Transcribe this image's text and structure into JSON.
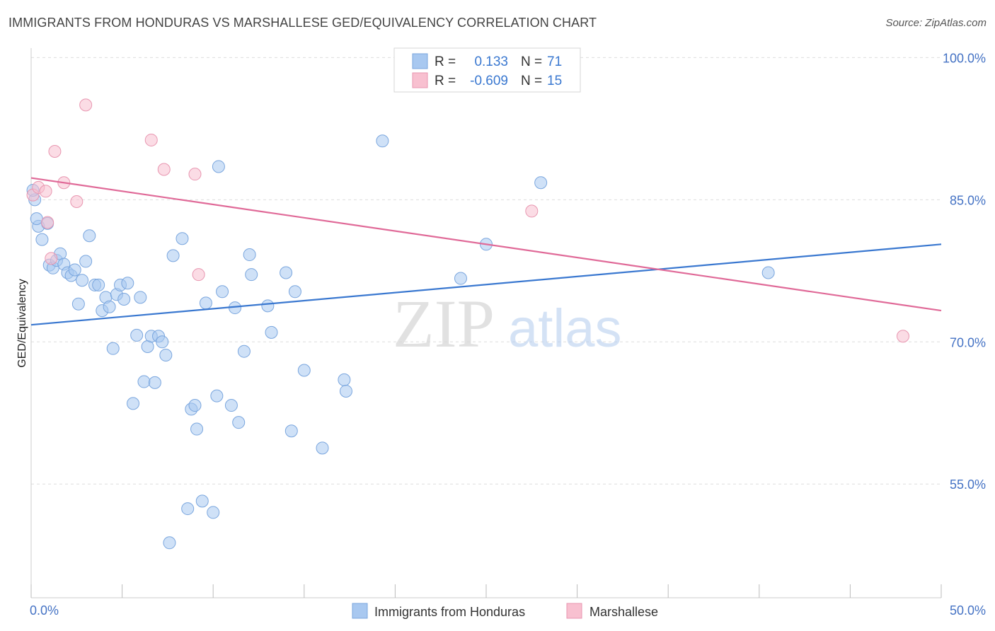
{
  "chart_data": {
    "type": "scatter",
    "title": "IMMIGRANTS FROM HONDURAS VS MARSHALLESE GED/EQUIVALENCY CORRELATION CHART",
    "source": "Source: ZipAtlas.com",
    "ylabel": "GED/Equivalency",
    "xlim": [
      0,
      50
    ],
    "ylim": [
      43,
      101
    ],
    "x_tick_labels": [
      "0.0%",
      "50.0%"
    ],
    "y_ticks": [
      {
        "value": 100,
        "label": "100.0%"
      },
      {
        "value": 85,
        "label": "85.0%"
      },
      {
        "value": 70,
        "label": "70.0%"
      },
      {
        "value": 55,
        "label": "55.0%"
      }
    ],
    "grid": "horizontal dashed",
    "watermark": {
      "zip": "ZIP",
      "atlas": "atlas"
    },
    "legend_stats": [
      {
        "r_label": "R =",
        "r_value": "0.133",
        "n_label": "N =",
        "n_value": "71"
      },
      {
        "r_label": "R =",
        "r_value": "-0.609",
        "n_label": "N =",
        "n_value": "15"
      }
    ],
    "series": [
      {
        "name": "Immigrants from Honduras",
        "color": "#a8c8f0",
        "stroke": "#7aa6de",
        "trend_color": "#3a78d0",
        "trend": [
          [
            0,
            71.8
          ],
          [
            50,
            80.3
          ]
        ],
        "points": [
          [
            0.4,
            82.2
          ],
          [
            0.6,
            80.8
          ],
          [
            0.9,
            82.5
          ],
          [
            1.0,
            78.1
          ],
          [
            1.2,
            77.8
          ],
          [
            1.4,
            78.6
          ],
          [
            1.6,
            79.3
          ],
          [
            1.8,
            78.2
          ],
          [
            2.0,
            77.3
          ],
          [
            2.2,
            77.0
          ],
          [
            2.4,
            77.6
          ],
          [
            2.6,
            74.0
          ],
          [
            2.8,
            76.5
          ],
          [
            3.0,
            78.5
          ],
          [
            3.2,
            81.2
          ],
          [
            3.5,
            76.0
          ],
          [
            3.7,
            76.0
          ],
          [
            3.9,
            73.3
          ],
          [
            4.1,
            74.7
          ],
          [
            4.3,
            73.7
          ],
          [
            4.5,
            69.3
          ],
          [
            4.7,
            75.0
          ],
          [
            4.9,
            76.0
          ],
          [
            5.1,
            74.5
          ],
          [
            5.3,
            76.2
          ],
          [
            5.6,
            63.5
          ],
          [
            5.8,
            70.7
          ],
          [
            6.0,
            74.7
          ],
          [
            6.2,
            65.8
          ],
          [
            6.4,
            69.5
          ],
          [
            6.6,
            70.6
          ],
          [
            6.8,
            65.7
          ],
          [
            7.0,
            70.6
          ],
          [
            7.2,
            70.0
          ],
          [
            7.4,
            68.6
          ],
          [
            7.6,
            48.8
          ],
          [
            7.8,
            79.1
          ],
          [
            8.3,
            80.9
          ],
          [
            8.6,
            52.4
          ],
          [
            8.8,
            62.9
          ],
          [
            9.0,
            63.3
          ],
          [
            9.1,
            60.8
          ],
          [
            9.4,
            53.2
          ],
          [
            9.6,
            74.1
          ],
          [
            10.0,
            52.0
          ],
          [
            10.2,
            64.3
          ],
          [
            10.3,
            88.5
          ],
          [
            10.5,
            75.3
          ],
          [
            11.0,
            63.3
          ],
          [
            11.2,
            73.6
          ],
          [
            11.4,
            61.5
          ],
          [
            11.7,
            69.0
          ],
          [
            12.0,
            79.2
          ],
          [
            12.1,
            77.1
          ],
          [
            13.0,
            73.8
          ],
          [
            13.2,
            71.0
          ],
          [
            14.0,
            77.3
          ],
          [
            14.3,
            60.6
          ],
          [
            14.5,
            75.3
          ],
          [
            15.0,
            67.0
          ],
          [
            16.0,
            58.8
          ],
          [
            17.2,
            66.0
          ],
          [
            17.3,
            64.8
          ],
          [
            19.3,
            91.2
          ],
          [
            23.6,
            76.7
          ],
          [
            25.0,
            80.3
          ],
          [
            28.0,
            86.8
          ],
          [
            40.5,
            77.3
          ],
          [
            0.2,
            85.0
          ],
          [
            0.3,
            83.0
          ],
          [
            0.1,
            86.0
          ]
        ]
      },
      {
        "name": "Marshallese",
        "color": "#f8c0d0",
        "stroke": "#e896b0",
        "trend_color": "#e06a98",
        "trend": [
          [
            0,
            87.3
          ],
          [
            50,
            73.3
          ]
        ],
        "points": [
          [
            0.1,
            85.5
          ],
          [
            0.4,
            86.3
          ],
          [
            0.8,
            85.9
          ],
          [
            0.9,
            82.6
          ],
          [
            1.1,
            78.8
          ],
          [
            1.3,
            90.1
          ],
          [
            1.8,
            86.8
          ],
          [
            2.5,
            84.8
          ],
          [
            3.0,
            95.0
          ],
          [
            6.6,
            91.3
          ],
          [
            7.3,
            88.2
          ],
          [
            9.0,
            87.7
          ],
          [
            9.2,
            77.1
          ],
          [
            27.5,
            83.8
          ],
          [
            47.9,
            70.6
          ]
        ]
      }
    ]
  }
}
